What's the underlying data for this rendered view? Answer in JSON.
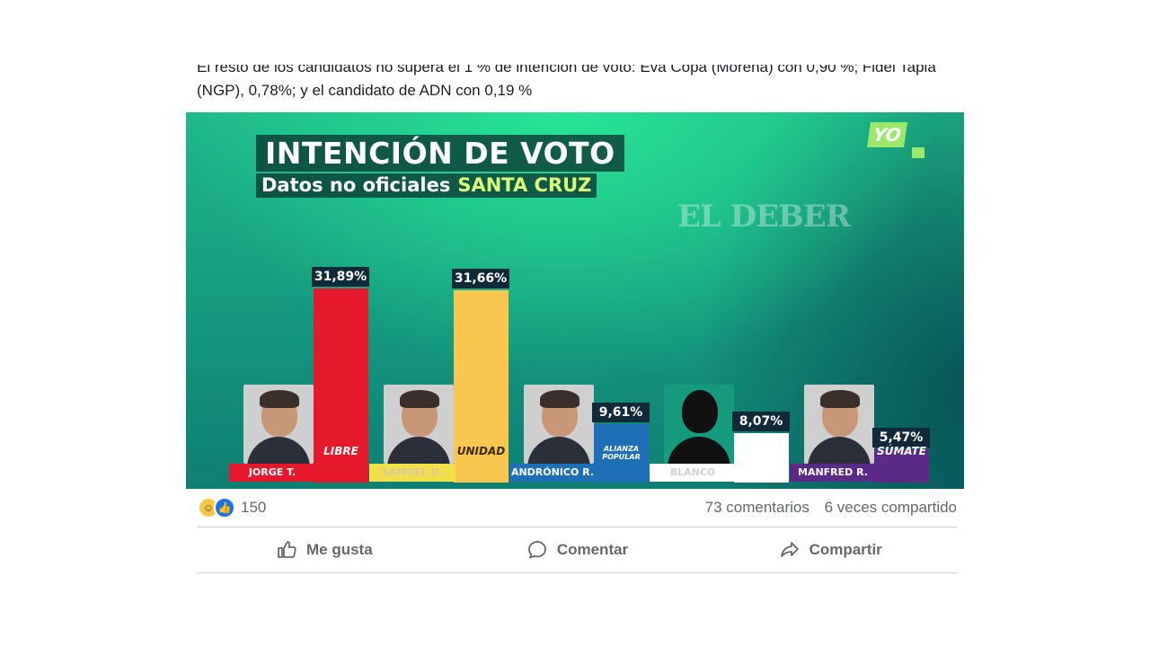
{
  "post": {
    "caption": "El resto de los candidatos no supera el 1 % de intención de voto: Eva Copa (Morena) con 0,90 %; Fidel Tapia (NGP), 0,78%; y el candidato de ADN con 0,19 %"
  },
  "graphic": {
    "title": "INTENCIÓN DE VOTO",
    "subtitle": "Datos no oficiales",
    "region": "SANTA CRUZ",
    "watermark": "EL DEBER",
    "logo": "YO"
  },
  "chart_data": {
    "type": "bar",
    "categories": [
      "JORGE T.",
      "SAMUEL D.",
      "ANDRÓNICO R.",
      "BLANCO",
      "MANFRED R."
    ],
    "values": [
      31.89,
      31.66,
      9.61,
      8.07,
      5.47
    ],
    "value_labels": [
      "31,89%",
      "31,66%",
      "9,61%",
      "8,07%",
      "5,47%"
    ],
    "parties": [
      "LIBRE",
      "UNIDAD",
      "ALIANZA POPULAR",
      "",
      "SÚMATE"
    ],
    "colors": [
      "#e5192b",
      "#f9c74f",
      "#1e6fb5",
      "#ffffff",
      "#5b2a86"
    ],
    "label_colors": [
      "#e5192b",
      "#f2e04a",
      "#1e6fb5",
      "#ffffff",
      "#5b2a86"
    ],
    "title": "INTENCIÓN DE VOTO",
    "ylim": [
      0,
      35
    ]
  },
  "engagement": {
    "reaction_count": "150",
    "comments": "73 comentarios",
    "shares": "6 veces compartido",
    "reactions": [
      "haha-icon",
      "like-icon"
    ]
  },
  "actions": {
    "like": "Me gusta",
    "comment": "Comentar",
    "share": "Compartir"
  }
}
